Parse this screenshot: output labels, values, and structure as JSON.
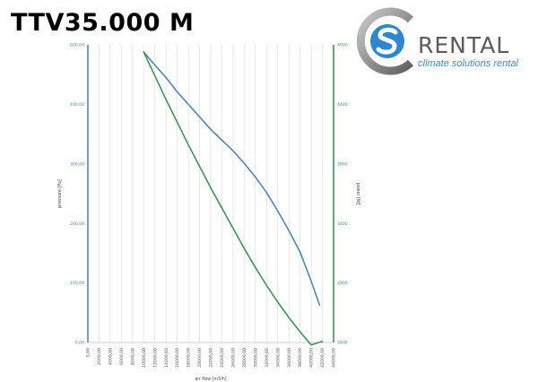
{
  "header": {
    "product_title": "TTV35.000 M"
  },
  "brand": {
    "name": "RENTAL",
    "tagline": "climate solutions rental",
    "logo_icon": "cs-rental-logo-icon"
  },
  "colors": {
    "pressure": "#4f86b8",
    "power": "#3f9457",
    "grid": "#d9d9d9",
    "logo_blue": "#2e86d0",
    "logo_ring": "#9e9e9e"
  },
  "chart_data": {
    "type": "line",
    "xlabel": "air flow [m3/h]",
    "ylabel": "pressure [Pa]",
    "y2label": "power [W]",
    "grid": true,
    "xlim": [
      0,
      44000
    ],
    "ylim": [
      0,
      500
    ],
    "y2lim": [
      2400,
      4900
    ],
    "x_ticks": [
      "0,00",
      "2000,00",
      "4000,00",
      "6000,00",
      "8000,00",
      "10000,00",
      "12000,00",
      "14000,00",
      "16000,00",
      "18000,00",
      "20000,00",
      "22000,00",
      "24000,00",
      "26000,00",
      "28000,00",
      "30000,00",
      "32000,00",
      "34000,00",
      "36000,00",
      "38000,00",
      "40000,00",
      "42000,00",
      "44000,00"
    ],
    "y_ticks": [
      "0,00",
      "100,00",
      "200,00",
      "300,00",
      "400,00",
      "500,00"
    ],
    "y2_ticks": [
      "2400",
      "2900",
      "3400",
      "3900",
      "4400",
      "4900"
    ],
    "series": [
      {
        "axis": "left",
        "x": [
          10000,
          12000,
          14000,
          16000,
          18000,
          20000,
          22000,
          24000,
          26000,
          28000,
          30000,
          32000,
          34000,
          36000,
          38000,
          40000,
          41500
        ],
        "y": [
          488,
          466,
          445,
          421,
          400,
          379,
          358,
          340,
          322,
          301,
          278,
          252,
          221,
          188,
          152,
          103,
          63
        ]
      },
      {
        "axis": "right",
        "x": [
          10000,
          12000,
          14000,
          16000,
          18000,
          20000,
          22000,
          24000,
          26000,
          28000,
          30000,
          32000,
          34000,
          36000,
          38000,
          40000,
          42000
        ],
        "y": [
          4840,
          4640,
          4440,
          4250,
          4060,
          3880,
          3700,
          3530,
          3360,
          3190,
          3030,
          2880,
          2740,
          2610,
          2490,
          2380,
          2410
        ]
      }
    ]
  }
}
